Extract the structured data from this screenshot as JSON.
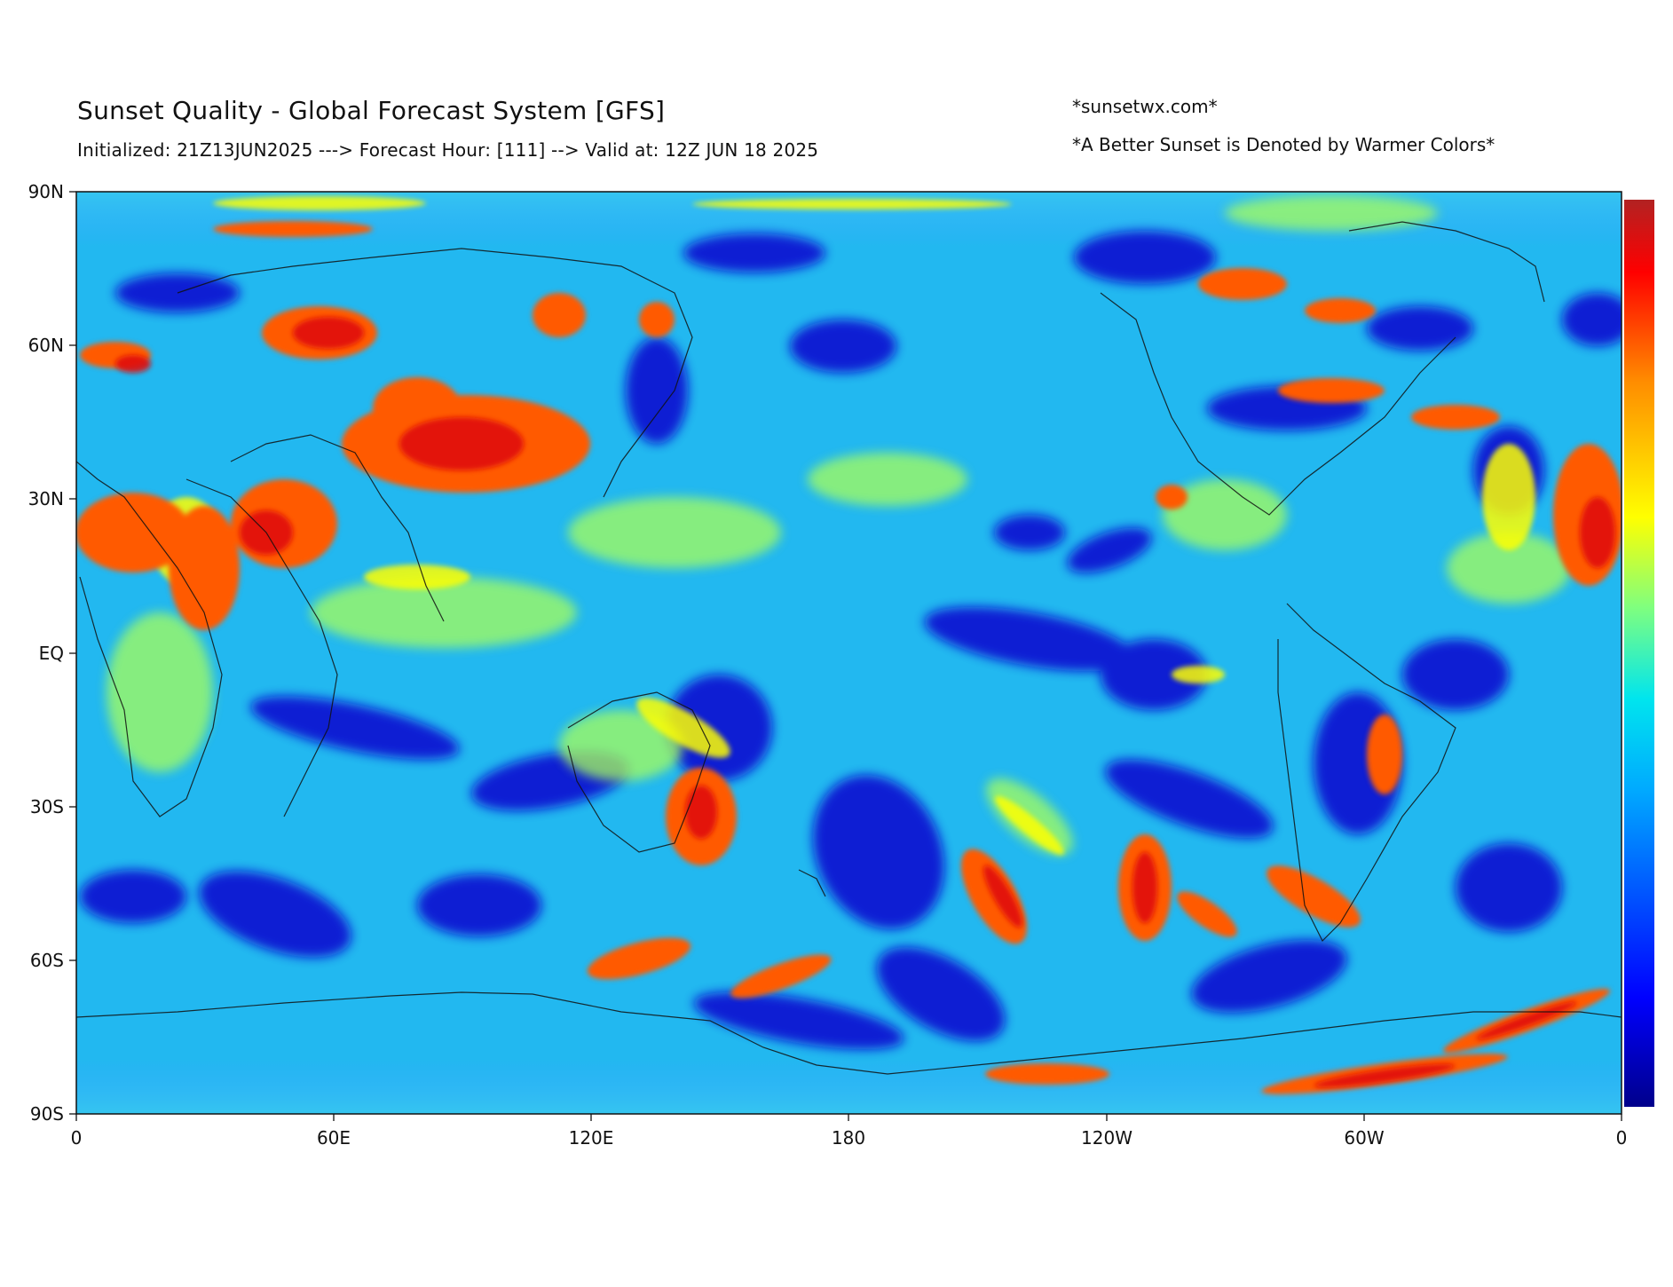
{
  "header": {
    "title": "Sunset Quality - Global Forecast System [GFS]",
    "subtitle": "Initialized: 21Z13JUN2025 ---> Forecast Hour: [111] --> Valid at: 12Z JUN 18 2025",
    "site": "*sunsetwx.com*",
    "note": "*A Better Sunset is Denoted by Warmer Colors*"
  },
  "map": {
    "projection": "equirectangular",
    "lon_range": [
      0,
      360
    ],
    "lat_range": [
      -90,
      90
    ],
    "lat_ticks": [
      "90N",
      "60N",
      "30N",
      "EQ",
      "30S",
      "60S",
      "90S"
    ],
    "lon_ticks": [
      "0",
      "60E",
      "120E",
      "180",
      "120W",
      "60W",
      "0"
    ],
    "colormap": [
      "#00008b",
      "#0000ff",
      "#00aaff",
      "#00e5ee",
      "#7fff7f",
      "#ffff00",
      "#ff8c00",
      "#ff0000",
      "#b22222"
    ]
  }
}
